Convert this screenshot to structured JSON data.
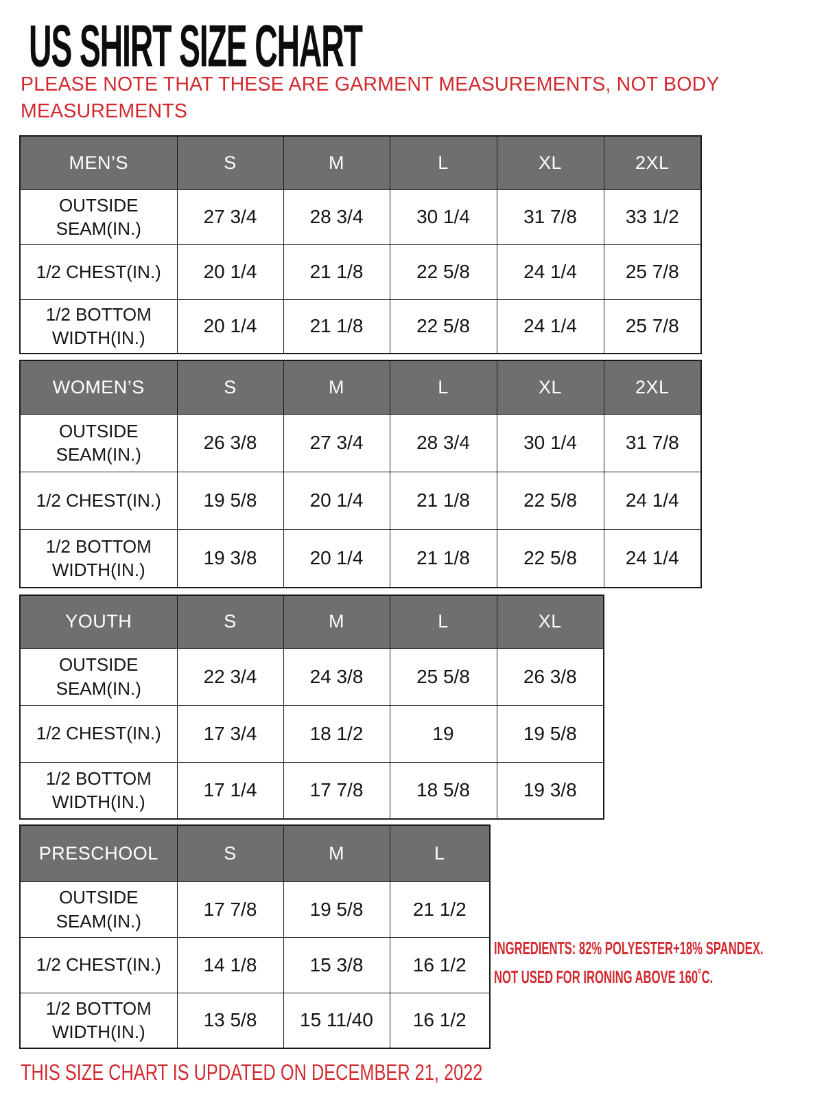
{
  "page": {
    "title": "US SHIRT SIZE CHART",
    "note": "PLEASE NOTE THAT THESE ARE GARMENT MEASUREMENTS, NOT BODY MEASUREMENTS",
    "ingredients_line1": "INGREDIENTS: 82% POLYESTER+18% SPANDEX.",
    "ingredients_line2": "NOT USED FOR IRONING ABOVE 160˚C.",
    "footer": "THIS SIZE CHART IS UPDATED ON DECEMBER 21, 2022"
  },
  "colors": {
    "header_bg": "#6f6f6f",
    "header_text": "#ffffff",
    "accent_red": "#d2282e",
    "text_black": "#141414",
    "border": "#1a1a1a",
    "title_black": "#0d0d0d"
  },
  "tables": [
    {
      "id": "mens",
      "header": [
        "MEN’S",
        "S",
        "M",
        "L",
        "XL",
        "2XL"
      ],
      "rows": [
        {
          "label": "OUTSIDE SEAM(IN.)",
          "values": [
            "27 3/4",
            "28 3/4",
            "30 1/4",
            "31 7/8",
            "33 1/2"
          ]
        },
        {
          "label": "1/2 CHEST(IN.)",
          "values": [
            "20 1/4",
            "21 1/8",
            "22 5/8",
            "24 1/4",
            "25 7/8"
          ]
        },
        {
          "label": "1/2 BOTTOM WIDTH(IN.)",
          "values": [
            "20 1/4",
            "21 1/8",
            "22 5/8",
            "24 1/4",
            "25 7/8"
          ]
        }
      ]
    },
    {
      "id": "womens",
      "header": [
        "WOMEN’S",
        "S",
        "M",
        "L",
        "XL",
        "2XL"
      ],
      "rows": [
        {
          "label": "OUTSIDE SEAM(IN.)",
          "values": [
            "26 3/8",
            "27 3/4",
            "28 3/4",
            "30 1/4",
            "31 7/8"
          ]
        },
        {
          "label": "1/2 CHEST(IN.)",
          "values": [
            "19 5/8",
            "20 1/4",
            "21 1/8",
            "22 5/8",
            "24 1/4"
          ]
        },
        {
          "label": "1/2 BOTTOM WIDTH(IN.)",
          "values": [
            "19 3/8",
            "20 1/4",
            "21 1/8",
            "22 5/8",
            "24 1/4"
          ]
        }
      ]
    },
    {
      "id": "youth",
      "header": [
        "YOUTH",
        "S",
        "M",
        "L",
        "XL"
      ],
      "rows": [
        {
          "label": "OUTSIDE SEAM(IN.)",
          "values": [
            "22 3/4",
            "24 3/8",
            "25 5/8",
            "26 3/8"
          ]
        },
        {
          "label": "1/2 CHEST(IN.)",
          "values": [
            "17 3/4",
            "18 1/2",
            "19",
            "19 5/8"
          ]
        },
        {
          "label": "1/2 BOTTOM WIDTH(IN.)",
          "values": [
            "17 1/4",
            "17 7/8",
            "18 5/8",
            "19 3/8"
          ]
        }
      ]
    },
    {
      "id": "preschool",
      "header": [
        "PRESCHOOL",
        "S",
        "M",
        "L"
      ],
      "rows": [
        {
          "label": "OUTSIDE SEAM(IN.)",
          "values": [
            "17 7/8",
            "19 5/8",
            "21 1/2"
          ]
        },
        {
          "label": "1/2 CHEST(IN.)",
          "values": [
            "14 1/8",
            "15 3/8",
            "16 1/2"
          ]
        },
        {
          "label": "1/2 BOTTOM WIDTH(IN.)",
          "values": [
            "13 5/8",
            "15 11/40",
            "16 1/2"
          ]
        }
      ]
    }
  ]
}
